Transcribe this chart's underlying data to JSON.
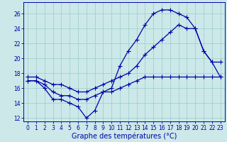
{
  "xlabel": "Graphe des températures (°C)",
  "bg_color": "#cce8e8",
  "line_color": "#0000aa",
  "grid_color": "#99cccc",
  "ylim": [
    11.5,
    27.5
  ],
  "xlim": [
    -0.5,
    23.5
  ],
  "yticks": [
    12,
    14,
    16,
    18,
    20,
    22,
    24,
    26
  ],
  "xticks": [
    0,
    1,
    2,
    3,
    4,
    5,
    6,
    7,
    8,
    9,
    10,
    11,
    12,
    13,
    14,
    15,
    16,
    17,
    18,
    19,
    20,
    21,
    22,
    23
  ],
  "line1_x": [
    0,
    1,
    2,
    3,
    4,
    5,
    6,
    7,
    8,
    9,
    10,
    11,
    12,
    13,
    14,
    15,
    16,
    17,
    18,
    19,
    20,
    21,
    22,
    23
  ],
  "line1_y": [
    17.0,
    17.0,
    16.0,
    14.5,
    14.5,
    14.0,
    13.5,
    12.0,
    13.0,
    15.5,
    16.0,
    19.0,
    21.0,
    22.5,
    24.5,
    26.0,
    26.5,
    26.5,
    26.0,
    25.5,
    24.0,
    21.0,
    19.5,
    19.5
  ],
  "line2_x": [
    0,
    1,
    2,
    3,
    4,
    5,
    6,
    7,
    8,
    9,
    10,
    11,
    12,
    13,
    14,
    15,
    16,
    17,
    18,
    19,
    20,
    21,
    22,
    23
  ],
  "line2_y": [
    17.5,
    17.5,
    17.0,
    16.5,
    16.5,
    16.0,
    15.5,
    15.5,
    16.0,
    16.5,
    17.0,
    17.5,
    18.0,
    19.0,
    20.5,
    21.5,
    22.5,
    23.5,
    24.5,
    24.0,
    24.0,
    21.0,
    19.5,
    17.5
  ],
  "line3_x": [
    0,
    1,
    2,
    3,
    4,
    5,
    6,
    7,
    8,
    9,
    10,
    11,
    12,
    13,
    14,
    15,
    16,
    17,
    18,
    19,
    20,
    21,
    22,
    23
  ],
  "line3_y": [
    17.0,
    17.0,
    16.5,
    15.5,
    15.0,
    15.0,
    14.5,
    14.5,
    15.0,
    15.5,
    15.5,
    16.0,
    16.5,
    17.0,
    17.5,
    17.5,
    17.5,
    17.5,
    17.5,
    17.5,
    17.5,
    17.5,
    17.5,
    17.5
  ],
  "xlabel_fontsize": 7,
  "tick_fontsize": 5.5
}
